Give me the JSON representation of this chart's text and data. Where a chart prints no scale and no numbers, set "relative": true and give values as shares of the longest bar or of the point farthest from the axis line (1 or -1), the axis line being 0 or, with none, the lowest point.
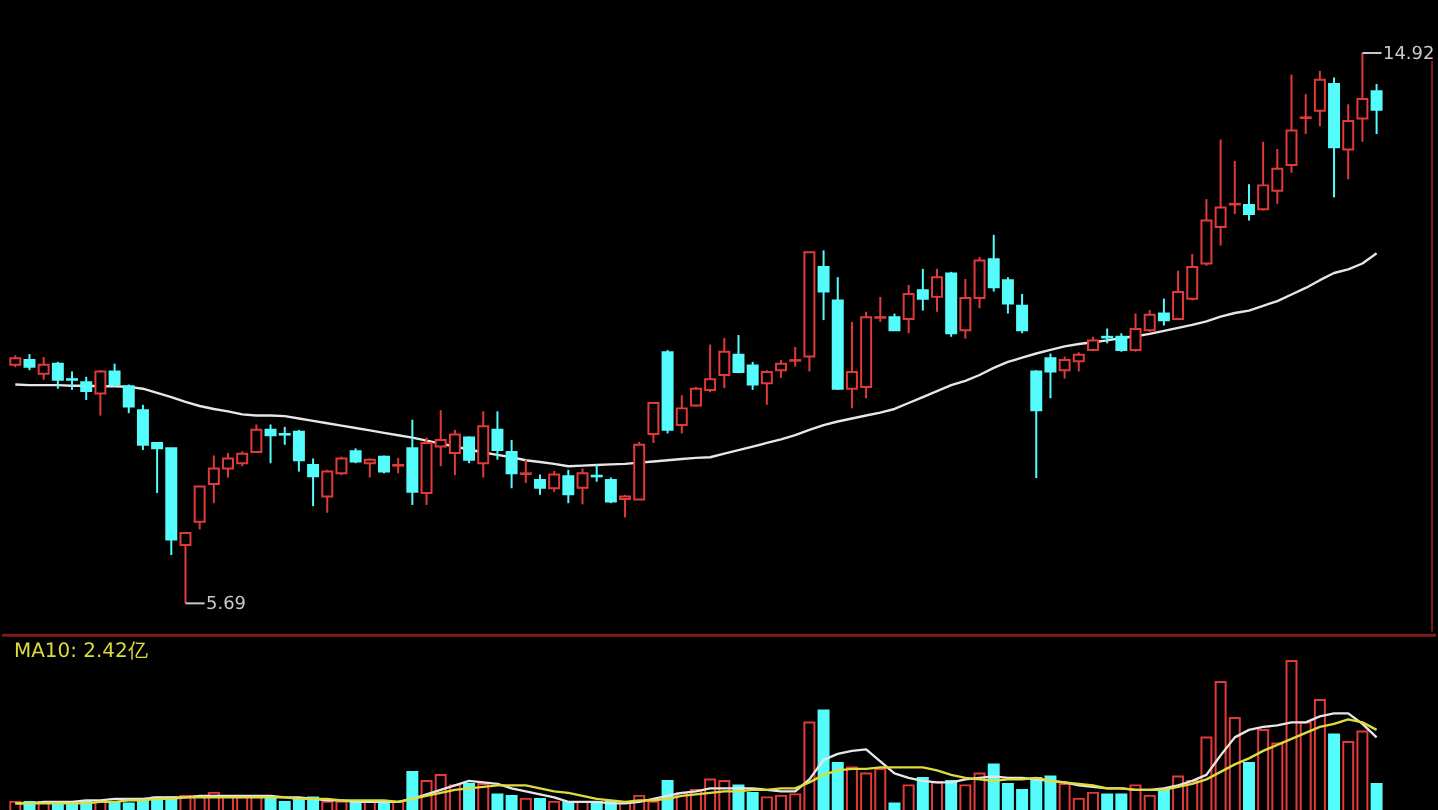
{
  "chart_data": [
    {
      "type": "candlestick",
      "tick_labels": false,
      "ylim": [
        5.22,
        15.79
      ],
      "categories": [
        null,
        null,
        null,
        null,
        null,
        null,
        null,
        null,
        null,
        null,
        null,
        null,
        null,
        null,
        null,
        null,
        null,
        null,
        null,
        null,
        null,
        null,
        null,
        null,
        null,
        null,
        null,
        null,
        null,
        null,
        null,
        null,
        null,
        null,
        null,
        null,
        null,
        null,
        null,
        null,
        null,
        null,
        null,
        null,
        null,
        null,
        null,
        null,
        null,
        null,
        null,
        null,
        null,
        null,
        null,
        null,
        null,
        null,
        null,
        null,
        null,
        null,
        null,
        null,
        null,
        null,
        null,
        null,
        null,
        null,
        null,
        null,
        null,
        null,
        null,
        null,
        null,
        null,
        null,
        null,
        null,
        null,
        null,
        null,
        null,
        null,
        null,
        null,
        null,
        null,
        null,
        null,
        null,
        null,
        null,
        null,
        null
      ],
      "ohlc": [
        [
          9.69,
          9.85,
          9.65,
          9.8
        ],
        [
          9.77,
          9.87,
          9.6,
          9.66
        ],
        [
          9.54,
          9.82,
          9.44,
          9.69
        ],
        [
          9.71,
          9.74,
          9.29,
          9.44
        ],
        [
          9.45,
          9.58,
          9.27,
          9.44
        ],
        [
          9.4,
          9.49,
          9.1,
          9.25
        ],
        [
          9.21,
          9.6,
          8.84,
          9.58
        ],
        [
          9.58,
          9.71,
          9.32,
          9.36
        ],
        [
          9.33,
          9.36,
          8.88,
          8.99
        ],
        [
          8.93,
          9.02,
          8.26,
          8.35
        ],
        [
          8.38,
          8.38,
          7.54,
          8.29
        ],
        [
          8.29,
          8.29,
          6.5,
          6.76
        ],
        [
          6.67,
          6.87,
          5.69,
          6.87
        ],
        [
          7.06,
          7.65,
          6.93,
          7.65
        ],
        [
          7.69,
          8.17,
          7.37,
          7.95
        ],
        [
          7.95,
          8.21,
          7.8,
          8.12
        ],
        [
          8.04,
          8.24,
          7.99,
          8.2
        ],
        [
          8.23,
          8.69,
          8.21,
          8.6
        ],
        [
          8.6,
          8.69,
          8.04,
          8.51
        ],
        [
          8.53,
          8.65,
          8.35,
          8.52
        ],
        [
          8.57,
          8.6,
          7.9,
          8.09
        ],
        [
          8.01,
          8.12,
          7.32,
          7.82
        ],
        [
          7.48,
          7.93,
          7.21,
          7.9
        ],
        [
          7.87,
          8.15,
          7.84,
          8.12
        ],
        [
          8.24,
          8.29,
          8.04,
          8.07
        ],
        [
          8.04,
          8.12,
          7.8,
          8.1
        ],
        [
          8.15,
          8.17,
          7.87,
          7.9
        ],
        [
          8.0,
          8.13,
          7.87,
          8.01
        ],
        [
          8.29,
          8.77,
          7.34,
          7.56
        ],
        [
          7.54,
          8.47,
          7.34,
          8.38
        ],
        [
          8.32,
          8.93,
          7.99,
          8.43
        ],
        [
          8.21,
          8.6,
          7.84,
          8.52
        ],
        [
          8.47,
          8.49,
          8.04,
          8.1
        ],
        [
          8.04,
          8.91,
          7.8,
          8.66
        ],
        [
          8.6,
          8.91,
          8.1,
          8.26
        ],
        [
          8.23,
          8.43,
          7.62,
          7.87
        ],
        [
          7.86,
          8.1,
          7.71,
          7.87
        ],
        [
          7.76,
          7.85,
          7.51,
          7.63
        ],
        [
          7.62,
          7.91,
          7.56,
          7.85
        ],
        [
          7.82,
          7.93,
          7.37,
          7.52
        ],
        [
          7.63,
          7.95,
          7.35,
          7.87
        ],
        [
          7.83,
          8.02,
          7.73,
          7.82
        ],
        [
          7.76,
          7.8,
          7.37,
          7.4
        ],
        [
          7.44,
          7.51,
          7.13,
          7.48
        ],
        [
          7.43,
          8.4,
          7.43,
          8.35
        ],
        [
          8.53,
          9.07,
          8.38,
          9.05
        ],
        [
          9.9,
          9.94,
          8.54,
          8.6
        ],
        [
          8.68,
          9.18,
          8.54,
          8.96
        ],
        [
          9.01,
          9.32,
          8.99,
          9.29
        ],
        [
          9.27,
          10.03,
          9.23,
          9.45
        ],
        [
          9.52,
          10.14,
          9.3,
          9.91
        ],
        [
          9.86,
          10.19,
          9.55,
          9.57
        ],
        [
          9.68,
          9.74,
          9.27,
          9.36
        ],
        [
          9.38,
          9.6,
          9.02,
          9.57
        ],
        [
          9.6,
          9.77,
          9.47,
          9.71
        ],
        [
          9.76,
          9.99,
          9.66,
          9.77
        ],
        [
          9.83,
          11.58,
          9.58,
          11.58
        ],
        [
          11.33,
          11.61,
          10.44,
          10.92
        ],
        [
          10.77,
          11.16,
          9.27,
          9.29
        ],
        [
          9.29,
          10.41,
          8.96,
          9.57
        ],
        [
          9.32,
          10.58,
          9.13,
          10.49
        ],
        [
          10.48,
          10.83,
          10.41,
          10.49
        ],
        [
          10.49,
          10.55,
          10.27,
          10.27
        ],
        [
          10.46,
          11.03,
          10.22,
          10.88
        ],
        [
          10.94,
          11.3,
          10.6,
          10.8
        ],
        [
          10.83,
          11.3,
          10.58,
          11.16
        ],
        [
          11.22,
          11.25,
          10.16,
          10.22
        ],
        [
          10.27,
          11.13,
          10.13,
          10.81
        ],
        [
          10.81,
          11.5,
          10.64,
          11.44
        ],
        [
          11.46,
          11.87,
          10.92,
          10.99
        ],
        [
          11.11,
          11.16,
          10.55,
          10.72
        ],
        [
          10.68,
          10.88,
          10.22,
          10.27
        ],
        [
          9.58,
          9.6,
          7.79,
          8.93
        ],
        [
          9.8,
          9.88,
          9.13,
          9.58
        ],
        [
          9.6,
          9.83,
          9.46,
          9.77
        ],
        [
          9.75,
          9.9,
          9.58,
          9.86
        ],
        [
          9.94,
          10.16,
          9.94,
          10.1
        ],
        [
          10.16,
          10.3,
          10.05,
          10.15
        ],
        [
          10.16,
          10.22,
          9.91,
          9.94
        ],
        [
          9.94,
          10.55,
          9.91,
          10.29
        ],
        [
          10.27,
          10.61,
          10.24,
          10.53
        ],
        [
          10.55,
          10.8,
          10.35,
          10.44
        ],
        [
          10.46,
          11.27,
          10.44,
          10.91
        ],
        [
          10.8,
          11.55,
          10.77,
          11.33
        ],
        [
          11.39,
          12.47,
          11.35,
          12.11
        ],
        [
          12.0,
          13.47,
          11.69,
          12.33
        ],
        [
          12.38,
          13.11,
          12.22,
          12.39
        ],
        [
          12.37,
          12.72,
          12.11,
          12.22
        ],
        [
          12.3,
          13.43,
          12.28,
          12.7
        ],
        [
          12.61,
          13.31,
          12.39,
          12.98
        ],
        [
          13.04,
          14.56,
          12.91,
          13.62
        ],
        [
          13.83,
          14.23,
          13.56,
          13.84
        ],
        [
          13.95,
          14.62,
          13.69,
          14.47
        ],
        [
          14.4,
          14.51,
          12.5,
          13.34
        ],
        [
          13.3,
          14.06,
          12.8,
          13.78
        ],
        [
          13.82,
          14.92,
          13.43,
          14.15
        ],
        [
          14.28,
          14.4,
          13.56,
          13.97
        ]
      ],
      "colors": [
        "#e23a3a",
        "#54fcfc",
        "#e23a3a",
        "#54fcfc",
        "#54fcfc",
        "#54fcfc",
        "#e23a3a",
        "#54fcfc",
        "#54fcfc",
        "#54fcfc",
        "#54fcfc",
        "#54fcfc",
        "#e23a3a",
        "#e23a3a",
        "#e23a3a",
        "#e23a3a",
        "#e23a3a",
        "#e23a3a",
        "#54fcfc",
        "#54fcfc",
        "#54fcfc",
        "#54fcfc",
        "#e23a3a",
        "#e23a3a",
        "#54fcfc",
        "#e23a3a",
        "#54fcfc",
        "#e23a3a",
        "#54fcfc",
        "#e23a3a",
        "#e23a3a",
        "#e23a3a",
        "#54fcfc",
        "#e23a3a",
        "#54fcfc",
        "#54fcfc",
        "#e23a3a",
        "#54fcfc",
        "#e23a3a",
        "#54fcfc",
        "#e23a3a",
        "#54fcfc",
        "#54fcfc",
        "#e23a3a",
        "#e23a3a",
        "#e23a3a",
        "#54fcfc",
        "#e23a3a",
        "#e23a3a",
        "#e23a3a",
        "#e23a3a",
        "#54fcfc",
        "#54fcfc",
        "#e23a3a",
        "#e23a3a",
        "#e23a3a",
        "#e23a3a",
        "#54fcfc",
        "#54fcfc",
        "#e23a3a",
        "#e23a3a",
        "#e23a3a",
        "#54fcfc",
        "#e23a3a",
        "#54fcfc",
        "#e23a3a",
        "#54fcfc",
        "#e23a3a",
        "#e23a3a",
        "#54fcfc",
        "#54fcfc",
        "#54fcfc",
        "#54fcfc",
        "#54fcfc",
        "#e23a3a",
        "#e23a3a",
        "#e23a3a",
        "#54fcfc",
        "#54fcfc",
        "#e23a3a",
        "#e23a3a",
        "#54fcfc",
        "#e23a3a",
        "#e23a3a",
        "#e23a3a",
        "#e23a3a",
        "#e23a3a",
        "#54fcfc",
        "#e23a3a",
        "#e23a3a",
        "#e23a3a",
        "#e23a3a",
        "#e23a3a",
        "#54fcfc",
        "#e23a3a",
        "#e23a3a",
        "#54fcfc"
      ],
      "series": [
        {
          "type": "line",
          "color": "#e6e6e6",
          "values": [
            9.36,
            9.35,
            9.35,
            9.35,
            9.34,
            9.34,
            9.33,
            9.33,
            9.32,
            9.29,
            9.22,
            9.15,
            9.07,
            9.0,
            8.95,
            8.91,
            8.86,
            8.84,
            8.84,
            8.83,
            8.79,
            8.75,
            8.71,
            8.67,
            8.63,
            8.59,
            8.55,
            8.51,
            8.47,
            8.42,
            8.37,
            8.32,
            8.27,
            8.22,
            8.18,
            8.14,
            8.09,
            8.06,
            8.03,
            7.99,
            8.0,
            8.01,
            8.02,
            8.03,
            8.05,
            8.07,
            8.09,
            8.11,
            8.13,
            8.14,
            8.2,
            8.26,
            8.32,
            8.38,
            8.44,
            8.51,
            8.6,
            8.68,
            8.74,
            8.79,
            8.84,
            8.89,
            8.95,
            9.05,
            9.15,
            9.25,
            9.35,
            9.42,
            9.52,
            9.64,
            9.74,
            9.81,
            9.88,
            9.94,
            10.0,
            10.04,
            10.07,
            10.1,
            10.14,
            10.17,
            10.21,
            10.26,
            10.31,
            10.36,
            10.42,
            10.5,
            10.56,
            10.6,
            10.68,
            10.76,
            10.87,
            10.98,
            11.11,
            11.23,
            11.29,
            11.39,
            11.56
          ]
        }
      ],
      "annotations": [
        "14.92",
        "5.69"
      ]
    },
    {
      "type": "bar",
      "relative": true,
      "tick_labels": false,
      "categories": [
        null,
        null,
        null,
        null,
        null,
        null,
        null,
        null,
        null,
        null,
        null,
        null,
        null,
        null,
        null,
        null,
        null,
        null,
        null,
        null,
        null,
        null,
        null,
        null,
        null,
        null,
        null,
        null,
        null,
        null,
        null,
        null,
        null,
        null,
        null,
        null,
        null,
        null,
        null,
        null,
        null,
        null,
        null,
        null,
        null,
        null,
        null,
        null,
        null,
        null,
        null,
        null,
        null,
        null,
        null,
        null,
        null,
        null,
        null,
        null,
        null,
        null,
        null,
        null,
        null,
        null,
        null,
        null,
        null,
        null,
        null,
        null,
        null,
        null,
        null,
        null,
        null,
        null,
        null,
        null,
        null,
        null,
        null,
        null,
        null,
        null,
        null,
        null,
        null,
        null,
        null,
        null,
        null,
        null,
        null,
        null,
        null
      ],
      "values": [
        0.06,
        0.06,
        0.06,
        0.06,
        0.06,
        0.06,
        0.06,
        0.06,
        0.05,
        0.06,
        0.09,
        0.09,
        0.1,
        0.1,
        0.12,
        0.1,
        0.09,
        0.09,
        0.08,
        0.06,
        0.08,
        0.09,
        0.06,
        0.06,
        0.06,
        0.06,
        0.06,
        0.06,
        0.26,
        0.2,
        0.24,
        0.17,
        0.18,
        0.18,
        0.11,
        0.1,
        0.08,
        0.08,
        0.06,
        0.06,
        0.06,
        0.06,
        0.06,
        0.06,
        0.1,
        0.06,
        0.2,
        0.12,
        0.14,
        0.21,
        0.2,
        0.17,
        0.12,
        0.09,
        0.1,
        0.11,
        0.59,
        0.67,
        0.32,
        0.29,
        0.25,
        0.28,
        0.05,
        0.17,
        0.22,
        0.19,
        0.2,
        0.17,
        0.25,
        0.31,
        0.18,
        0.14,
        0.22,
        0.23,
        0.18,
        0.08,
        0.12,
        0.11,
        0.11,
        0.17,
        0.1,
        0.14,
        0.23,
        0.2,
        0.49,
        0.86,
        0.62,
        0.32,
        0.54,
        0.45,
        1.0,
        0.59,
        0.74,
        0.51,
        0.46,
        0.53,
        0.18
      ],
      "colors": [
        "#e23a3a",
        "#54fcfc",
        "#e23a3a",
        "#54fcfc",
        "#54fcfc",
        "#54fcfc",
        "#e23a3a",
        "#54fcfc",
        "#54fcfc",
        "#54fcfc",
        "#54fcfc",
        "#54fcfc",
        "#e23a3a",
        "#e23a3a",
        "#e23a3a",
        "#e23a3a",
        "#e23a3a",
        "#e23a3a",
        "#54fcfc",
        "#54fcfc",
        "#54fcfc",
        "#54fcfc",
        "#e23a3a",
        "#e23a3a",
        "#54fcfc",
        "#e23a3a",
        "#54fcfc",
        "#e23a3a",
        "#54fcfc",
        "#e23a3a",
        "#e23a3a",
        "#e23a3a",
        "#54fcfc",
        "#e23a3a",
        "#54fcfc",
        "#54fcfc",
        "#e23a3a",
        "#54fcfc",
        "#e23a3a",
        "#54fcfc",
        "#e23a3a",
        "#54fcfc",
        "#54fcfc",
        "#e23a3a",
        "#e23a3a",
        "#e23a3a",
        "#54fcfc",
        "#e23a3a",
        "#e23a3a",
        "#e23a3a",
        "#e23a3a",
        "#54fcfc",
        "#54fcfc",
        "#e23a3a",
        "#e23a3a",
        "#e23a3a",
        "#e23a3a",
        "#54fcfc",
        "#54fcfc",
        "#e23a3a",
        "#e23a3a",
        "#e23a3a",
        "#54fcfc",
        "#e23a3a",
        "#54fcfc",
        "#e23a3a",
        "#54fcfc",
        "#e23a3a",
        "#e23a3a",
        "#54fcfc",
        "#54fcfc",
        "#54fcfc",
        "#54fcfc",
        "#54fcfc",
        "#e23a3a",
        "#e23a3a",
        "#e23a3a",
        "#54fcfc",
        "#54fcfc",
        "#e23a3a",
        "#e23a3a",
        "#54fcfc",
        "#e23a3a",
        "#e23a3a",
        "#e23a3a",
        "#e23a3a",
        "#e23a3a",
        "#54fcfc",
        "#e23a3a",
        "#e23a3a",
        "#e23a3a",
        "#e23a3a",
        "#e23a3a",
        "#54fcfc",
        "#e23a3a",
        "#e23a3a",
        "#54fcfc"
      ],
      "series": [
        {
          "type": "line",
          "color": "#e6e6e6",
          "values": [
            0.05,
            0.05,
            0.06,
            0.06,
            0.06,
            0.07,
            0.07,
            0.08,
            0.08,
            0.08,
            0.09,
            0.09,
            0.09,
            0.1,
            0.1,
            0.1,
            0.1,
            0.1,
            0.1,
            0.09,
            0.09,
            0.08,
            0.07,
            0.07,
            0.06,
            0.06,
            0.06,
            0.06,
            0.08,
            0.11,
            0.14,
            0.17,
            0.2,
            0.19,
            0.18,
            0.15,
            0.13,
            0.11,
            0.09,
            0.06,
            0.06,
            0.06,
            0.05,
            0.05,
            0.06,
            0.08,
            0.1,
            0.12,
            0.13,
            0.15,
            0.15,
            0.15,
            0.15,
            0.14,
            0.13,
            0.13,
            0.21,
            0.34,
            0.38,
            0.4,
            0.41,
            0.33,
            0.25,
            0.22,
            0.2,
            0.19,
            0.19,
            0.21,
            0.22,
            0.23,
            0.22,
            0.22,
            0.21,
            0.2,
            0.19,
            0.17,
            0.16,
            0.15,
            0.15,
            0.14,
            0.14,
            0.15,
            0.17,
            0.2,
            0.24,
            0.37,
            0.49,
            0.54,
            0.56,
            0.57,
            0.59,
            0.59,
            0.63,
            0.65,
            0.65,
            0.58,
            0.49
          ]
        },
        {
          "type": "line",
          "name": "MA10: 2.42亿",
          "color": "#dcdc3c",
          "values": [
            0.05,
            0.05,
            0.05,
            0.05,
            0.05,
            0.05,
            0.06,
            0.06,
            0.07,
            0.07,
            0.08,
            0.08,
            0.09,
            0.09,
            0.09,
            0.09,
            0.09,
            0.09,
            0.09,
            0.09,
            0.08,
            0.08,
            0.08,
            0.07,
            0.07,
            0.07,
            0.07,
            0.06,
            0.08,
            0.1,
            0.12,
            0.14,
            0.15,
            0.16,
            0.17,
            0.17,
            0.17,
            0.15,
            0.13,
            0.12,
            0.1,
            0.08,
            0.07,
            0.06,
            0.07,
            0.07,
            0.08,
            0.1,
            0.11,
            0.12,
            0.13,
            0.13,
            0.14,
            0.14,
            0.15,
            0.15,
            0.19,
            0.24,
            0.27,
            0.28,
            0.28,
            0.29,
            0.29,
            0.29,
            0.29,
            0.27,
            0.24,
            0.22,
            0.21,
            0.2,
            0.21,
            0.21,
            0.22,
            0.2,
            0.19,
            0.18,
            0.17,
            0.15,
            0.15,
            0.14,
            0.14,
            0.14,
            0.16,
            0.18,
            0.21,
            0.26,
            0.31,
            0.35,
            0.4,
            0.44,
            0.48,
            0.52,
            0.56,
            0.58,
            0.61,
            0.59,
            0.54
          ]
        }
      ]
    }
  ]
}
